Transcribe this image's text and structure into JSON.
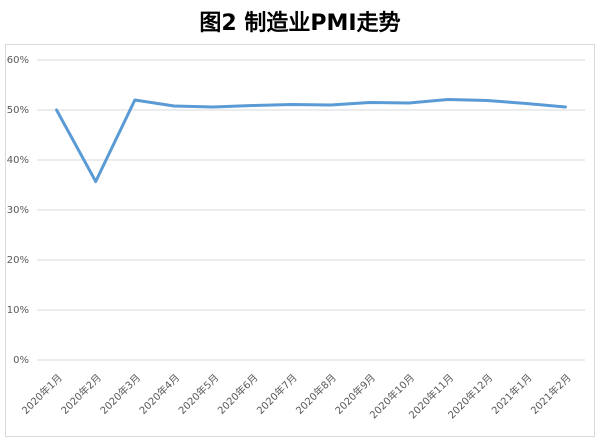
{
  "chart_data": {
    "type": "line",
    "title": "图2  制造业PMI走势",
    "categories": [
      "2020年1月",
      "2020年2月",
      "2020年3月",
      "2020年4月",
      "2020年5月",
      "2020年6月",
      "2020年7月",
      "2020年8月",
      "2020年9月",
      "2020年10月",
      "2020年11月",
      "2020年12月",
      "2021年1月",
      "2021年2月"
    ],
    "series": [
      {
        "name": "制造业PMI",
        "color": "#5b9bd5",
        "values": [
          50.0,
          35.7,
          52.0,
          50.8,
          50.6,
          50.9,
          51.1,
          51.0,
          51.5,
          51.4,
          52.1,
          51.9,
          51.3,
          50.6
        ]
      }
    ],
    "ylim": [
      0,
      60
    ],
    "yticks": [
      {
        "value": 0,
        "label": "0%"
      },
      {
        "value": 10,
        "label": "10%"
      },
      {
        "value": 20,
        "label": "20%"
      },
      {
        "value": 30,
        "label": "30%"
      },
      {
        "value": 40,
        "label": "40%"
      },
      {
        "value": 50,
        "label": "50%"
      },
      {
        "value": 60,
        "label": "60%"
      }
    ],
    "grid": true
  }
}
